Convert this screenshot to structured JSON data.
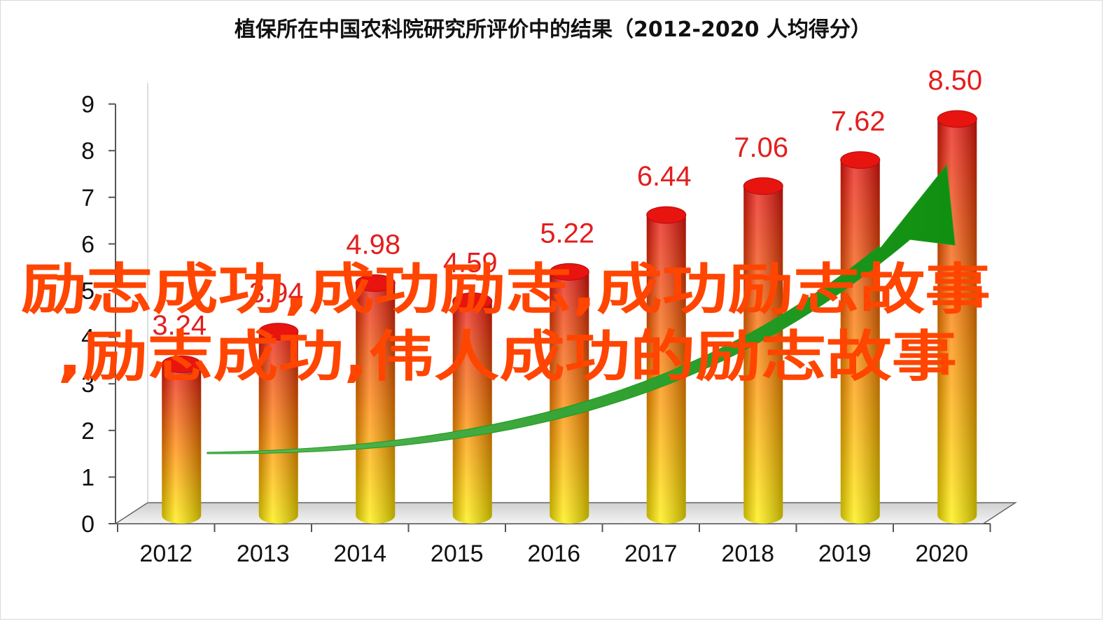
{
  "chart_data": {
    "type": "bar",
    "title": "植保所在中国农科院研究所评价中的结果（2012-2020  人均得分）",
    "xlabel": "",
    "ylabel": "",
    "categories": [
      "2012",
      "2013",
      "2014",
      "2015",
      "2016",
      "2017",
      "2018",
      "2019",
      "2020"
    ],
    "values": [
      3.24,
      3.94,
      4.98,
      4.59,
      5.22,
      6.44,
      7.06,
      7.62,
      8.5
    ],
    "data_labels": [
      "3.24",
      "3.94",
      "4.98",
      "4.59",
      "5.22",
      "6.44",
      "7.06",
      "7.62",
      "8.50"
    ],
    "ylim": [
      0,
      9
    ],
    "yticks": [
      "0",
      "1",
      "2",
      "3",
      "4",
      "5",
      "6",
      "7",
      "8",
      "9"
    ],
    "grid": false,
    "legend": "none",
    "style": "3d-cylinder",
    "colors": {
      "bar_top": "#e8140f",
      "bar_mid": "#ff8c00",
      "bar_bottom": "#ffee00",
      "data_label": "#e31e1e",
      "trend_arrow": "#1e9a1e",
      "floor": "#e6e6e6"
    },
    "annotations": [
      "trend-arrow"
    ]
  },
  "overlay": {
    "line1": "励志成功,成功励志,成功励志故事",
    "line2": ",励志成功,伟人成功的励志故事",
    "color": "#ff4500"
  }
}
